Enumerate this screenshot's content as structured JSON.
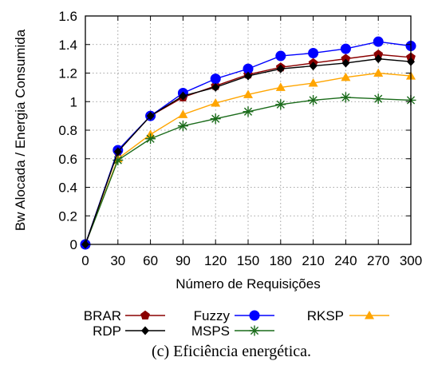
{
  "chart_data": {
    "type": "line",
    "xlabel": "Número de Requisições",
    "ylabel": "Bw Alocada / Energia Consumida",
    "caption": "(c)  Eficiência energética.",
    "x": [
      0,
      30,
      60,
      90,
      120,
      150,
      180,
      210,
      240,
      270,
      300
    ],
    "x_ticks": [
      "0",
      "30",
      "60",
      "90",
      "120",
      "150",
      "180",
      "210",
      "240",
      "270",
      "300"
    ],
    "xlim": [
      0,
      300
    ],
    "y_ticks": [
      "0",
      "0.2",
      "0.4",
      "0.6",
      "0.8",
      "1",
      "1.2",
      "1.4",
      "1.6"
    ],
    "ylim": [
      0,
      1.6
    ],
    "grid": true,
    "legend_placement": "bottom",
    "series": [
      {
        "name": "BRAR",
        "color": "#8b0000",
        "marker": "pentagon",
        "values": [
          0,
          0.65,
          0.9,
          1.03,
          1.11,
          1.19,
          1.24,
          1.27,
          1.3,
          1.33,
          1.31
        ]
      },
      {
        "name": "Fuzzy",
        "color": "#0000ff",
        "marker": "circle",
        "values": [
          0,
          0.66,
          0.9,
          1.06,
          1.16,
          1.23,
          1.32,
          1.34,
          1.37,
          1.42,
          1.39
        ]
      },
      {
        "name": "RKSP",
        "color": "#ffa500",
        "marker": "triangle",
        "values": [
          0,
          0.6,
          0.77,
          0.91,
          0.99,
          1.05,
          1.1,
          1.13,
          1.17,
          1.2,
          1.18
        ]
      },
      {
        "name": "RDP",
        "color": "#000000",
        "marker": "diamond",
        "values": [
          0,
          0.65,
          0.9,
          1.04,
          1.1,
          1.18,
          1.23,
          1.25,
          1.27,
          1.3,
          1.28
        ]
      },
      {
        "name": "MSPS",
        "color": "#1a6b1a",
        "marker": "star",
        "values": [
          0,
          0.59,
          0.74,
          0.83,
          0.88,
          0.93,
          0.98,
          1.01,
          1.03,
          1.02,
          1.01
        ]
      }
    ]
  }
}
